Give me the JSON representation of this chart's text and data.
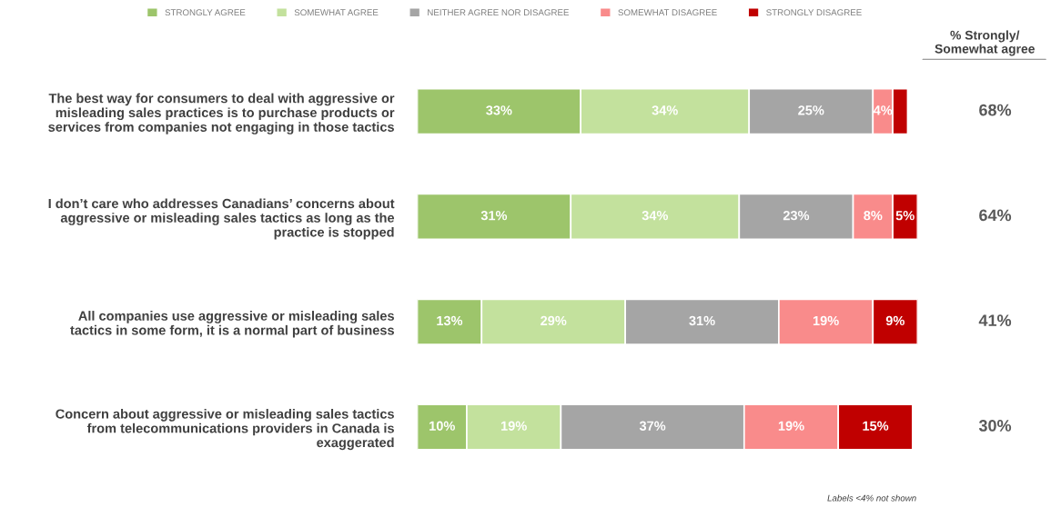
{
  "chart_data": {
    "type": "bar",
    "orientation": "horizontal",
    "stacked": true,
    "categories": [
      "The best way for consumers to deal with aggressive or\nmisleading sales practices is to purchase products or\nservices from companies not engaging in those tactics",
      "I don’t care who addresses Canadians’ concerns about\naggressive or misleading sales tactics as long as the\npractice is stopped",
      "All companies use aggressive or misleading sales\ntactics in some form, it is a normal part of business",
      "Concern about aggressive or misleading sales tactics\nfrom telecommunications providers in Canada is\nexaggerated"
    ],
    "series": [
      {
        "name": "STRONGLY AGREE",
        "color": "#9dc56b",
        "values": [
          33,
          31,
          13,
          10
        ],
        "value_labels": [
          "33%",
          "31%",
          "13%",
          "10%"
        ]
      },
      {
        "name": "SOMEWHAT AGREE",
        "color": "#c3e19d",
        "values": [
          34,
          34,
          29,
          19
        ],
        "value_labels": [
          "34%",
          "34%",
          "29%",
          "19%"
        ]
      },
      {
        "name": "NEITHER AGREE NOR DISAGREE",
        "color": "#a5a5a5",
        "values": [
          25,
          23,
          31,
          37
        ],
        "value_labels": [
          "25%",
          "23%",
          "31%",
          "37%"
        ]
      },
      {
        "name": "SOMEWHAT DISAGREE",
        "color": "#f98b8b",
        "values": [
          4,
          8,
          19,
          19
        ],
        "value_labels": [
          "4%",
          "8%",
          "19%",
          "19%"
        ]
      },
      {
        "name": "STRONGLY DISAGREE",
        "color": "#c00000",
        "values": [
          3,
          5,
          9,
          15
        ],
        "value_labels": [
          null,
          "5%",
          "9%",
          "15%"
        ]
      }
    ],
    "legend": "top",
    "tick_labels": "y",
    "grid": false,
    "annotations": [
      "% Strongly/\nSomewhat agree",
      "68%",
      "64%",
      "41%",
      "30%",
      "Labels <4% not shown"
    ]
  }
}
